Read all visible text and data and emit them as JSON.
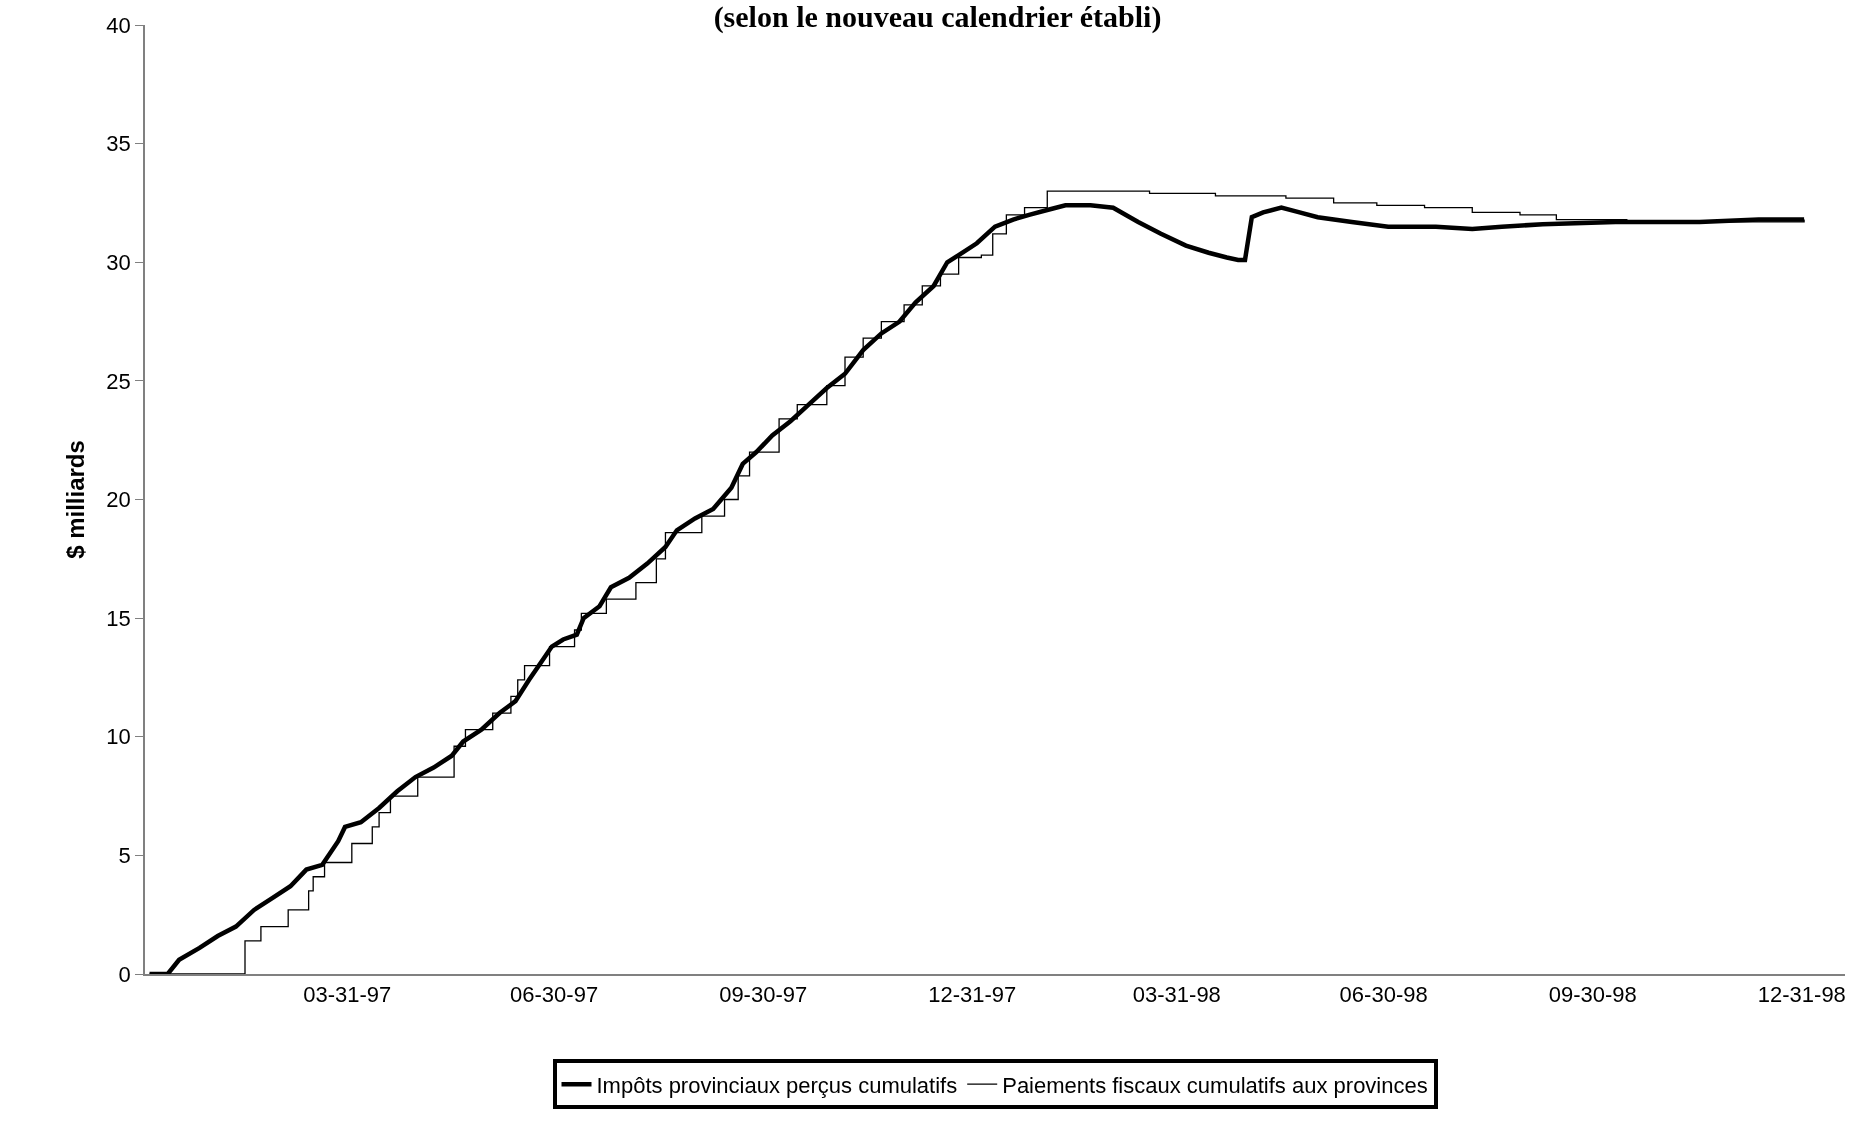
{
  "chart_data": {
    "type": "line",
    "title": "(selon le nouveau calendrier établi)",
    "ylabel": "$ milliards",
    "xlim": [
      "1997-01-01",
      "1999-01-19"
    ],
    "xticks": [
      {
        "value": "1997-03-31",
        "label": "03-31-97"
      },
      {
        "value": "1997-06-30",
        "label": "06-30-97"
      },
      {
        "value": "1997-09-30",
        "label": "09-30-97"
      },
      {
        "value": "1997-12-31",
        "label": "12-31-97"
      },
      {
        "value": "1998-03-31",
        "label": "03-31-98"
      },
      {
        "value": "1998-06-30",
        "label": "06-30-98"
      },
      {
        "value": "1998-09-30",
        "label": "09-30-98"
      },
      {
        "value": "1998-12-31",
        "label": "12-31-98"
      }
    ],
    "ylim": [
      0,
      40
    ],
    "yticks": [
      0,
      5,
      10,
      15,
      20,
      25,
      30,
      35,
      40
    ],
    "grid": false,
    "legend": "bottom",
    "series": [
      {
        "name": "Impôts provinciaux perçus cumulatifs",
        "color": "#000000",
        "x": [
          "1997-01-03",
          "1997-01-11",
          "1997-01-16",
          "1997-01-25",
          "1997-02-02",
          "1997-02-10",
          "1997-02-18",
          "1997-02-26",
          "1997-03-06",
          "1997-03-13",
          "1997-03-20",
          "1997-03-27",
          "1997-03-30",
          "1997-04-06",
          "1997-04-14",
          "1997-04-22",
          "1997-04-30",
          "1997-05-08",
          "1997-05-16",
          "1997-05-21",
          "1997-05-29",
          "1997-06-06",
          "1997-06-13",
          "1997-06-19",
          "1997-06-24",
          "1997-06-29",
          "1997-07-04",
          "1997-07-10",
          "1997-07-13",
          "1997-07-20",
          "1997-07-25",
          "1997-08-02",
          "1997-08-10",
          "1997-08-18",
          "1997-08-23",
          "1997-08-31",
          "1997-09-08",
          "1997-09-16",
          "1997-09-21",
          "1997-09-27",
          "1997-10-04",
          "1997-10-12",
          "1997-10-20",
          "1997-10-28",
          "1997-11-05",
          "1997-11-13",
          "1997-11-21",
          "1997-11-29",
          "1997-12-06",
          "1997-12-14",
          "1997-12-20",
          "1997-12-25",
          "1998-01-02",
          "1998-01-10",
          "1998-01-18",
          "1998-01-25",
          "1998-02-02",
          "1998-02-10",
          "1998-02-21",
          "1998-03-03",
          "1998-03-14",
          "1998-03-24",
          "1998-04-04",
          "1998-04-14",
          "1998-04-22",
          "1998-04-27",
          "1998-04-30",
          "1998-05-03",
          "1998-05-08",
          "1998-05-16",
          "1998-05-24",
          "1998-06-01",
          "1998-06-16",
          "1998-07-02",
          "1998-07-23",
          "1998-08-08",
          "1998-08-21",
          "1998-09-08",
          "1998-10-10",
          "1998-11-16",
          "1998-12-12",
          "1999-01-01"
        ],
        "values": [
          0,
          0,
          0.6,
          1.1,
          1.6,
          2.0,
          2.7,
          3.2,
          3.7,
          4.4,
          4.6,
          5.6,
          6.2,
          6.4,
          7.0,
          7.7,
          8.3,
          8.7,
          9.2,
          9.8,
          10.3,
          11.0,
          11.5,
          12.4,
          13.1,
          13.8,
          14.1,
          14.3,
          15.0,
          15.5,
          16.3,
          16.7,
          17.3,
          18.0,
          18.7,
          19.2,
          19.6,
          20.5,
          21.5,
          22.0,
          22.7,
          23.3,
          24.0,
          24.7,
          25.3,
          26.3,
          27.0,
          27.5,
          28.3,
          29.0,
          30.0,
          30.3,
          30.8,
          31.5,
          31.8,
          32.0,
          32.2,
          32.4,
          32.4,
          32.3,
          31.7,
          31.2,
          30.7,
          30.4,
          30.2,
          30.1,
          30.1,
          31.9,
          32.1,
          32.3,
          32.1,
          31.9,
          31.7,
          31.5,
          31.5,
          31.4,
          31.5,
          31.6,
          31.7,
          31.7,
          31.8,
          31.8
        ]
      },
      {
        "name": "Paiements fiscaux cumulatifs aux provinces",
        "color": "#000000",
        "type": "step",
        "x": [
          "1997-01-03",
          "1997-02-13",
          "1997-02-14",
          "1997-02-21",
          "1997-03-05",
          "1997-03-14",
          "1997-03-16",
          "1997-03-21",
          "1997-04-02",
          "1997-04-11",
          "1997-04-14",
          "1997-04-19",
          "1997-05-01",
          "1997-05-17",
          "1997-05-22",
          "1997-06-03",
          "1997-06-11",
          "1997-06-14",
          "1997-06-17",
          "1997-06-28",
          "1997-07-09",
          "1997-07-12",
          "1997-07-23",
          "1997-08-05",
          "1997-08-14",
          "1997-08-18",
          "1997-09-03",
          "1997-09-13",
          "1997-09-19",
          "1997-09-24",
          "1997-10-07",
          "1997-10-15",
          "1997-10-28",
          "1997-11-05",
          "1997-11-13",
          "1997-11-21",
          "1997-12-01",
          "1997-12-09",
          "1997-12-17",
          "1997-12-25",
          "1998-01-04",
          "1998-01-09",
          "1998-01-15",
          "1998-01-23",
          "1998-02-02",
          "1998-03-19",
          "1998-04-17",
          "1998-05-18",
          "1998-06-08",
          "1998-06-27",
          "1998-07-18",
          "1998-08-08",
          "1998-08-29",
          "1998-09-14",
          "1998-10-15",
          "1998-11-16",
          "1999-01-01"
        ],
        "values": [
          0,
          0,
          1.4,
          2.0,
          2.7,
          3.5,
          4.1,
          4.7,
          5.5,
          6.2,
          6.8,
          7.5,
          8.3,
          9.6,
          10.3,
          11.0,
          11.7,
          12.4,
          13.0,
          13.8,
          14.5,
          15.2,
          15.8,
          16.5,
          17.5,
          18.6,
          19.3,
          20.0,
          21.0,
          22.0,
          23.4,
          24.0,
          24.8,
          26.0,
          26.8,
          27.5,
          28.2,
          29.0,
          29.5,
          30.2,
          30.3,
          31.2,
          32.0,
          32.3,
          33.0,
          32.9,
          32.8,
          32.7,
          32.5,
          32.4,
          32.3,
          32.1,
          32.0,
          31.8,
          31.7,
          31.7,
          31.8
        ]
      }
    ]
  }
}
